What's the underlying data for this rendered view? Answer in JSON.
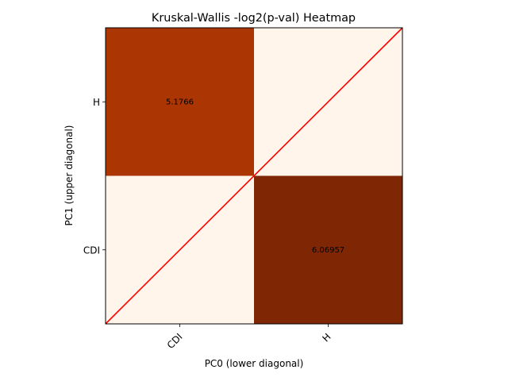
{
  "chart_data": {
    "type": "heatmap",
    "title": "Kruskal-Wallis -log2(p-val) Heatmap",
    "xlabel": "PC0 (lower diagonal)",
    "ylabel": "PC1 (upper diagonal)",
    "x_categories": [
      "CDI",
      "H"
    ],
    "y_categories": [
      "CDI",
      "H"
    ],
    "cells": [
      {
        "x": "CDI",
        "y": "H",
        "value": 5.1766,
        "label": "5.1766",
        "color": "#ab3503"
      },
      {
        "x": "H",
        "y": "H",
        "value": 0,
        "label": "",
        "color": "#fff5eb"
      },
      {
        "x": "CDI",
        "y": "CDI",
        "value": 0,
        "label": "",
        "color": "#fff5eb"
      },
      {
        "x": "H",
        "y": "CDI",
        "value": 6.06957,
        "label": "6.06957",
        "color": "#7f2704"
      }
    ],
    "colormap": "Oranges",
    "diagonal_line_color": "#ff0000",
    "grid": false,
    "legend": "none"
  }
}
